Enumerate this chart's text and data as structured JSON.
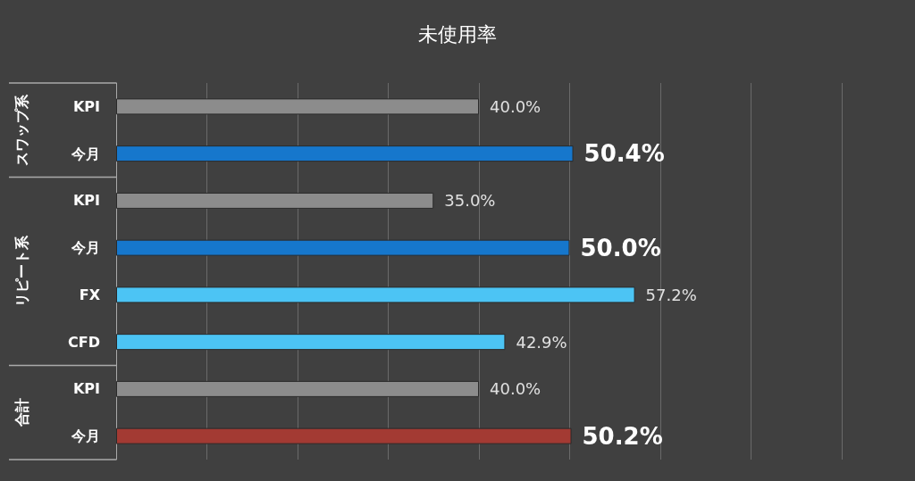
{
  "chart_data": {
    "type": "bar",
    "orientation": "horizontal",
    "title": "未使用率",
    "categories": [
      "KPI",
      "今月",
      "KPI",
      "今月",
      "FX",
      "CFD",
      "KPI",
      "今月"
    ],
    "values": [
      40.0,
      50.4,
      35.0,
      50.0,
      57.2,
      42.9,
      40.0,
      50.2
    ],
    "colors": [
      "#8c8c8c",
      "#1677cc",
      "#8c8c8c",
      "#1677cc",
      "#4cc4f4",
      "#4cc4f4",
      "#8c8c8c",
      "#a33a33"
    ],
    "value_labels": [
      "40.0%",
      "50.4%",
      "35.0%",
      "50.0%",
      "57.2%",
      "42.9%",
      "40.0%",
      "50.2%"
    ],
    "xlim": [
      0,
      80
    ],
    "xticks": [
      {
        "value": 0,
        "label": null
      },
      {
        "value": 10,
        "label": null
      },
      {
        "value": 20,
        "label": null
      },
      {
        "value": 30,
        "label": null
      },
      {
        "value": 40,
        "label": null
      },
      {
        "value": 50,
        "label": null
      },
      {
        "value": 60,
        "label": null
      },
      {
        "value": 70,
        "label": null
      },
      {
        "value": 80,
        "label": null
      }
    ],
    "tick_labels": "y",
    "grid": "x",
    "annotations": [
      "スワップ系",
      "リピート系",
      "合計"
    ]
  }
}
